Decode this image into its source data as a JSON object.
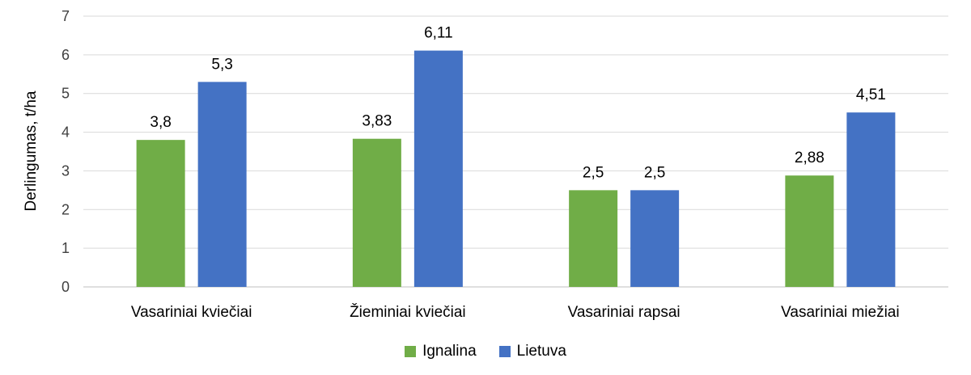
{
  "chart_data": {
    "type": "bar",
    "categories": [
      "Vasariniai kviečiai",
      "Žieminiai kviečiai",
      "Vasariniai rapsai",
      "Vasariniai miežiai"
    ],
    "series": [
      {
        "name": "Ignalina",
        "values": [
          3.8,
          3.83,
          2.5,
          2.88
        ],
        "labels": [
          "3,8",
          "3,83",
          "2,5",
          "2,88"
        ],
        "color": "#70ad47"
      },
      {
        "name": "Lietuva",
        "values": [
          5.3,
          6.11,
          2.5,
          4.51
        ],
        "labels": [
          "5,3",
          "6,11",
          "2,5",
          "4,51"
        ],
        "color": "#4472c4"
      }
    ],
    "ylabel": "Derlingumas, t/ha",
    "ylim": [
      0,
      7
    ],
    "yticks": [
      "0",
      "1",
      "2",
      "3",
      "4",
      "5",
      "6",
      "7"
    ],
    "grid": true,
    "legend_position": "bottom"
  }
}
